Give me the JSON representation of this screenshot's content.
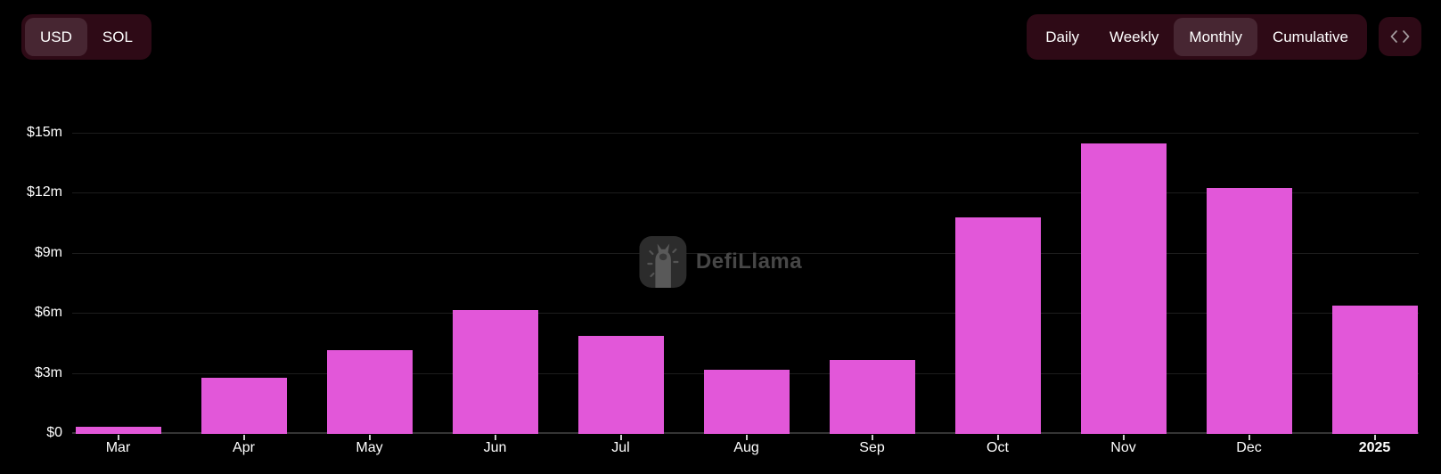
{
  "header": {
    "currency_toggle": {
      "options": [
        {
          "label": "USD",
          "selected": true
        },
        {
          "label": "SOL",
          "selected": false
        }
      ]
    },
    "interval_toggle": {
      "options": [
        {
          "label": "Daily",
          "selected": false
        },
        {
          "label": "Weekly",
          "selected": false
        },
        {
          "label": "Monthly",
          "selected": true
        },
        {
          "label": "Cumulative",
          "selected": false
        }
      ]
    },
    "embed_button": {
      "icon": "code-embed-icon"
    }
  },
  "watermark": {
    "logo_icon": "defillama-llama-logo-icon",
    "text": "DefiLlama"
  },
  "chart_data": {
    "type": "bar",
    "title": "",
    "xlabel": "",
    "ylabel": "",
    "categories": [
      "Mar",
      "Apr",
      "May",
      "Jun",
      "Jul",
      "Aug",
      "Sep",
      "Oct",
      "Nov",
      "Dec",
      "2025"
    ],
    "values": [
      0.35,
      2.8,
      4.2,
      6.2,
      4.9,
      3.2,
      3.7,
      10.8,
      14.5,
      12.3,
      6.4
    ],
    "values_unit": "$ millions",
    "ytick_labels": [
      "$0",
      "$3m",
      "$6m",
      "$9m",
      "$12m",
      "$15m"
    ],
    "ytick_values": [
      0,
      3,
      6,
      9,
      12,
      15
    ],
    "ylim": [
      0,
      15
    ],
    "grid": "horizontal-gridlines",
    "legend": "none",
    "bold_categories": [
      "2025"
    ],
    "bar_color": "#e257d9"
  },
  "colors": {
    "background": "#000000",
    "toggle_group_bg": "#2e0a16",
    "toggle_selected_bg": "#472632",
    "bar": "#e257d9",
    "gridline": "#1d1d1d",
    "axis_line": "#343434",
    "label_text": "#ffffff",
    "watermark_text": "#474747"
  }
}
